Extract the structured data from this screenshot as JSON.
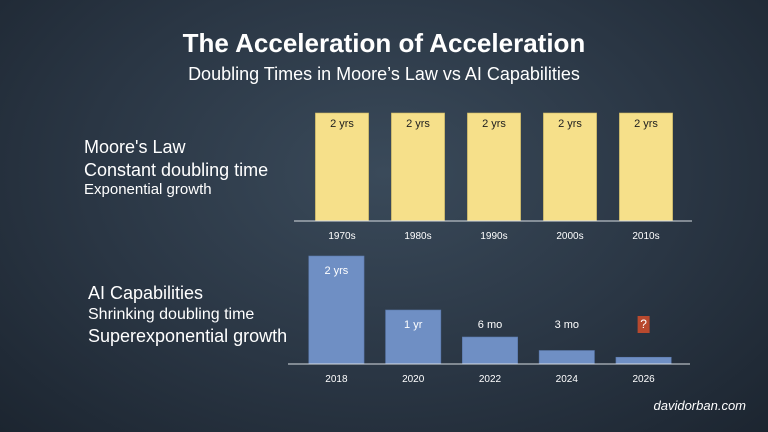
{
  "header": {
    "title": "The Acceleration of Acceleration",
    "subtitle": "Doubling Times in Moore’s Law vs AI Capabilities"
  },
  "moore_label": {
    "line1": "Moore's Law",
    "line2": "Constant doubling time",
    "line3": "Exponential growth"
  },
  "ai_label": {
    "line1": "AI Capabilities",
    "line2": "Shrinking doubling time",
    "line3": "Superexponential growth"
  },
  "footer": {
    "credit": "davidorban.com"
  },
  "colors": {
    "moore_bar": "#f6e08a",
    "ai_bar": "#6f8fc4",
    "unknown_badge": "#b8492e"
  },
  "chart_data": [
    {
      "type": "bar",
      "title": "Moore's Law",
      "categories": [
        "1970s",
        "1980s",
        "1990s",
        "2000s",
        "2010s"
      ],
      "values": [
        2,
        2,
        2,
        2,
        2
      ],
      "data_labels": [
        "2 yrs",
        "2 yrs",
        "2 yrs",
        "2 yrs",
        "2 yrs"
      ],
      "unit": "years (doubling time)",
      "ylim": [
        0,
        2
      ],
      "xlabel": "",
      "ylabel": ""
    },
    {
      "type": "bar",
      "title": "AI Capabilities",
      "categories": [
        "2018",
        "2020",
        "2022",
        "2024",
        "2026"
      ],
      "values": [
        2,
        1,
        0.5,
        0.25,
        0.125
      ],
      "data_labels": [
        "2 yrs",
        "1 yr",
        "6 mo",
        "3 mo",
        "?"
      ],
      "unit": "years (doubling time)",
      "ylim": [
        0,
        2
      ],
      "xlabel": "",
      "ylabel": ""
    }
  ]
}
